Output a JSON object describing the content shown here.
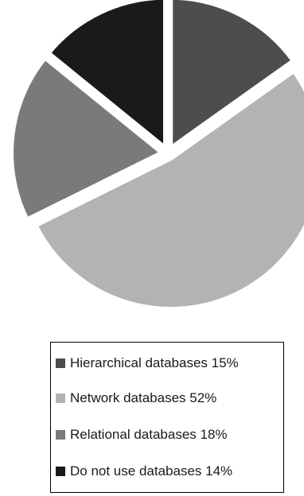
{
  "chart_data": {
    "type": "pie",
    "title": "",
    "legend_position": "bottom",
    "exploded": true,
    "slices": [
      {
        "label": "Hierarchical databases",
        "value": 15,
        "legend_text": "Hierarchical databases 15%",
        "color": "#4d4d4d"
      },
      {
        "label": "Network databases",
        "value": 52,
        "legend_text": "Network databases 52%",
        "color": "#b3b3b3"
      },
      {
        "label": "Relational databases",
        "value": 18,
        "legend_text": "Relational databases 18%",
        "color": "#7a7a7a"
      },
      {
        "label": "Do not use databases",
        "value": 14,
        "legend_text": "Do not use databases 14%",
        "color": "#1a1a1a"
      }
    ]
  }
}
